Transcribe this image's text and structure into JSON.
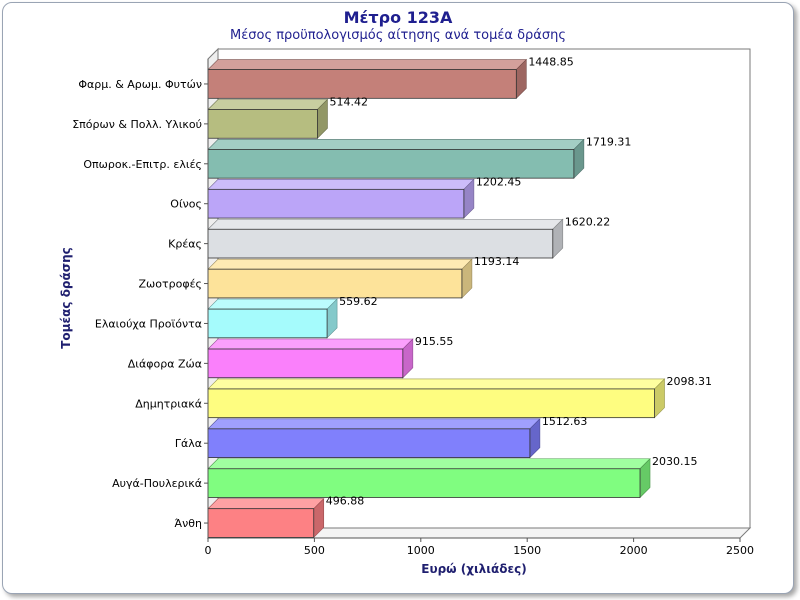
{
  "chart_data": {
    "type": "bar",
    "orientation": "horizontal",
    "title": "Μέτρο 123Α",
    "subtitle": "Μέσος προϋπολογισμός αίτησης ανά τομέα δράσης",
    "xlabel": "Ευρώ (χιλιάδες)",
    "ylabel": "Τομέας δράσης",
    "xlim": [
      0,
      2500
    ],
    "xticks": [
      "0",
      "500",
      "1000",
      "1500",
      "2000",
      "2500"
    ],
    "categories": [
      "Φαρμ. & Αρωμ. Φυτών",
      "Σπόρων & Πολλ. Υλικού",
      "Οπωροκ.-Επιτρ. ελιές",
      "Οίνος",
      "Κρέας",
      "Ζωοτροφές",
      "Ελαιούχα Προϊόντα",
      "Διάφορα Ζώα",
      "Δημητριακά",
      "Γάλα",
      "Αυγά-Πουλερικά",
      "Άνθη"
    ],
    "values": [
      1448.85,
      514.42,
      1719.31,
      1202.45,
      1620.22,
      1193.14,
      559.62,
      915.55,
      2098.31,
      1512.63,
      2030.15,
      496.88
    ],
    "value_labels": [
      "1448.85",
      "514.42",
      "1719.31",
      "1202.45",
      "1620.22",
      "1193.14",
      "559.62",
      "915.55",
      "2098.31",
      "1512.63",
      "2030.15",
      "496.88"
    ],
    "colors": [
      "#c48079",
      "#b6bd80",
      "#84bdb0",
      "#bba5f8",
      "#dcdfe3",
      "#fde39a",
      "#a5fbfc",
      "#fa80fb",
      "#fefd80",
      "#8080fc",
      "#80fd80",
      "#fd8184"
    ],
    "grid": false,
    "legend": "none"
  }
}
